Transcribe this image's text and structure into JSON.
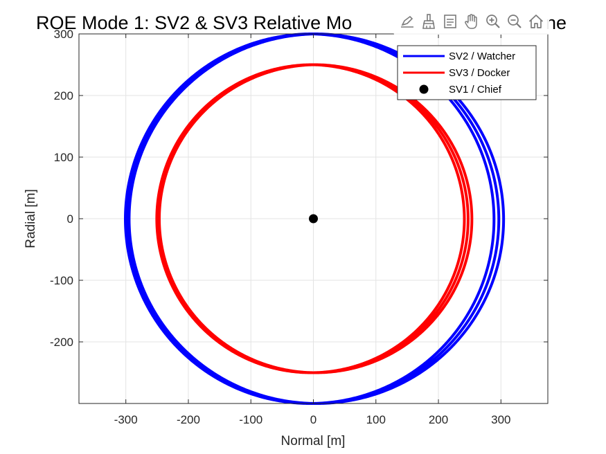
{
  "toolbar": {
    "buttons": [
      {
        "icon": "edit-axes-icon",
        "name": "toolbar-edit-button"
      },
      {
        "icon": "brush-icon",
        "name": "toolbar-brush-button"
      },
      {
        "icon": "data-tips-icon",
        "name": "toolbar-datatips-button"
      },
      {
        "icon": "pan-hand-icon",
        "name": "toolbar-pan-button"
      },
      {
        "icon": "zoom-in-icon",
        "name": "toolbar-zoom-in-button"
      },
      {
        "icon": "zoom-out-icon",
        "name": "toolbar-zoom-out-button"
      },
      {
        "icon": "home-icon",
        "name": "toolbar-restore-view-button"
      }
    ]
  },
  "chart_data": {
    "type": "line",
    "title": "ROE Mode 1: SV2 & SV3 Relative Motion in RN Plane",
    "title_visible": "ROE Mode 1: SV2 & SV3 Relative Mo",
    "title_visible_suffix": "ne",
    "xlabel": "Normal [m]",
    "ylabel": "Radial [m]",
    "xlim": [
      -375,
      375
    ],
    "ylim": [
      -300,
      300
    ],
    "xticks": [
      -300,
      -200,
      -100,
      0,
      100,
      200,
      300
    ],
    "yticks": [
      -200,
      -100,
      0,
      100,
      200,
      300
    ],
    "grid": true,
    "legend_location": "top-right",
    "series": [
      {
        "name": "SV2 / Watcher",
        "kind": "ellipse",
        "color": "#0000ff",
        "center": [
          0,
          0
        ],
        "radius_normal": [
          295,
          302
        ],
        "radius_radial": 300,
        "phase_offset_normal": 8
      },
      {
        "name": "SV3 / Docker",
        "kind": "ellipse",
        "color": "#ff0000",
        "center": [
          0,
          0
        ],
        "radius_normal": [
          246,
          252
        ],
        "radius_radial": 250,
        "phase_offset_normal": 6
      },
      {
        "name": "SV1 / Chief",
        "kind": "point",
        "color": "#000000",
        "x": 0,
        "y": 0
      }
    ]
  }
}
